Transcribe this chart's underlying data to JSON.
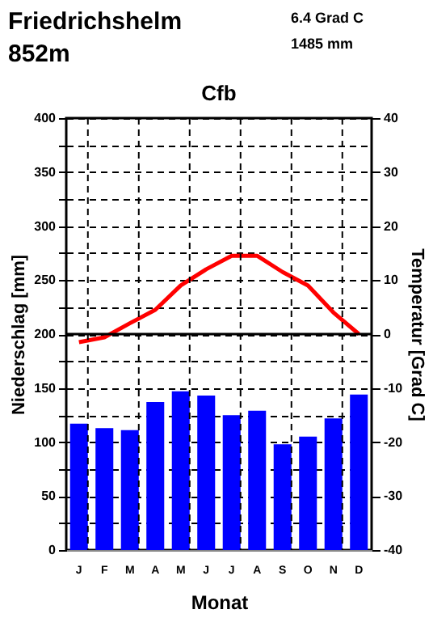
{
  "chart_data": {
    "type": "bar",
    "title": "Cfb",
    "annotations": [
      "Friedrichshelm",
      "852m",
      "6.4 Grad C",
      "1485 mm"
    ],
    "xlabel": "Monat",
    "ylabel": "Niederschlag [mm]",
    "y2label": "Temperatur [Grad C]",
    "categories": [
      "J",
      "F",
      "M",
      "A",
      "M",
      "J",
      "J",
      "A",
      "S",
      "O",
      "N",
      "D"
    ],
    "series": [
      {
        "axis": "y",
        "color": "#0000ff",
        "values": [
          117,
          113,
          111,
          137,
          147,
          143,
          125,
          129,
          98,
          105,
          122,
          144
        ]
      },
      {
        "type": "line",
        "axis": "y2",
        "color": "#ff0000",
        "values": [
          -1.5,
          -0.6,
          2,
          4.5,
          9,
          12,
          14.5,
          14.5,
          11.5,
          9,
          4,
          0
        ]
      }
    ],
    "ylim": [
      0,
      400
    ],
    "yticks": [
      0,
      {
        "value": 25,
        "label": null
      },
      50,
      {
        "value": 75,
        "label": null
      },
      100,
      {
        "value": 125,
        "label": null
      },
      150,
      {
        "value": 175,
        "label": null
      },
      200,
      {
        "value": 225,
        "label": null
      },
      250,
      {
        "value": 275,
        "label": null
      },
      300,
      {
        "value": 325,
        "label": null
      },
      350,
      {
        "value": 375,
        "label": null
      },
      400
    ],
    "y2lim": [
      -40,
      40
    ],
    "y2ticks": [
      -40,
      -30,
      -20,
      -10,
      0,
      10,
      20,
      30,
      40
    ],
    "ref_lines": [
      {
        "axis": "y2",
        "value": 0,
        "color": "#000000"
      }
    ],
    "grid": true,
    "marker": "none",
    "line_style": "solid"
  }
}
